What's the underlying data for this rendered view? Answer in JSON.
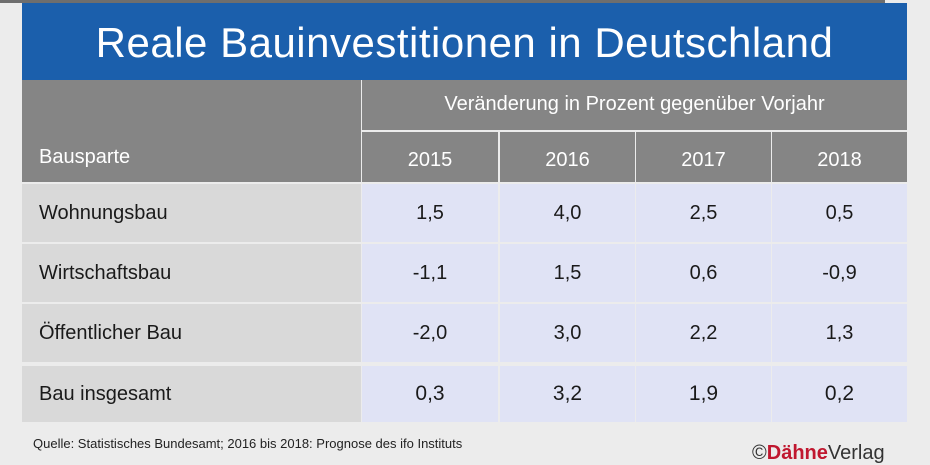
{
  "title": "Reale Bauinvestitionen in Deutschland",
  "chart_data": {
    "type": "table",
    "title": "Reale Bauinvestitionen in Deutschland",
    "row_header": "Bausparte",
    "column_group": "Veränderung in Prozent gegenüber Vorjahr",
    "columns": [
      "2015",
      "2016",
      "2017",
      "2018"
    ],
    "rows": [
      {
        "label": "Wohnungsbau",
        "values": [
          "1,5",
          "4,0",
          "2,5",
          "0,5"
        ]
      },
      {
        "label": "Wirtschaftsbau",
        "values": [
          "-1,1",
          "1,5",
          "0,6",
          "-0,9"
        ]
      },
      {
        "label": "Öffentlicher Bau",
        "values": [
          "-2,0",
          "3,0",
          "2,2",
          "1,3"
        ]
      },
      {
        "label": "Bau insgesamt",
        "values": [
          "0,3",
          "3,2",
          "1,9",
          "0,2"
        ],
        "total": true
      }
    ]
  },
  "footnote": "Quelle: Statistisches Bundesamt; 2016 bis 2018: Prognose des ifo Instituts",
  "logo": {
    "symbol": "©",
    "brand": "Dähne",
    "suffix": "Verlag"
  },
  "colors": {
    "title_bg": "#1b5fac",
    "header_bg": "#858585",
    "label_bg": "#d9d9d9",
    "value_bg": "#e0e3f5",
    "brand": "#c0172f"
  }
}
